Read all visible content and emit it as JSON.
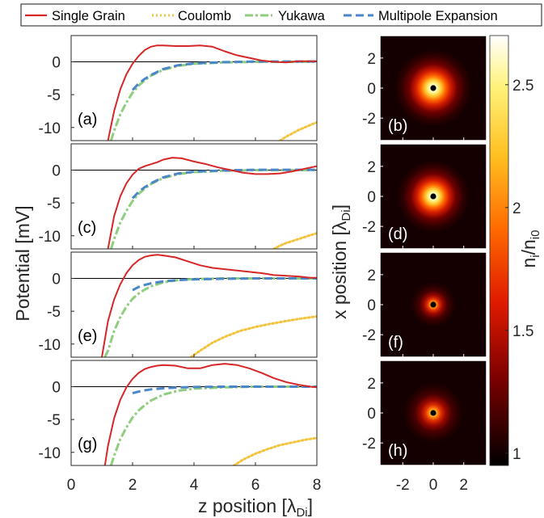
{
  "chart_data": {
    "type": "line",
    "legend": {
      "placement": "top",
      "entries": [
        {
          "name": "Single Grain",
          "color": "#d62728",
          "style": "solid"
        },
        {
          "name": "Coulomb",
          "color": "#f2c33c",
          "style": "dotted"
        },
        {
          "name": "Yukawa",
          "color": "#8fcd7f",
          "style": "dash-dot"
        },
        {
          "name": "Multipole Expansion",
          "color": "#4a86c8",
          "style": "dashed"
        }
      ]
    },
    "xlabel": "z position [λDi]",
    "ylabel": "Potential [mV]",
    "xlim": [
      0,
      8
    ],
    "ylim": [
      -12,
      4
    ],
    "xticks": [
      0,
      2,
      4,
      6,
      8
    ],
    "yticks": [
      0,
      -5,
      -10
    ],
    "zero_line": true,
    "panels": [
      {
        "label": "(a)",
        "series": [
          {
            "name": "Single Grain",
            "x": [
              1.2,
              1.4,
              1.6,
              1.8,
              2.0,
              2.2,
              2.4,
              2.6,
              2.8,
              3.0,
              3.4,
              3.8,
              4.2,
              4.6,
              5.0,
              5.4,
              5.8,
              6.2,
              6.6,
              7.0,
              7.4,
              7.8,
              8.0
            ],
            "y": [
              -12,
              -7.5,
              -4.2,
              -1.9,
              -0.3,
              0.9,
              1.8,
              2.3,
              2.5,
              2.5,
              2.4,
              2.4,
              2.5,
              2.3,
              1.6,
              1.0,
              0.6,
              0.2,
              0.0,
              -0.1,
              0.1,
              0.1,
              0.1
            ]
          },
          {
            "name": "Coulomb",
            "x": [
              6.8,
              7.0,
              7.2,
              7.4,
              7.6,
              7.8,
              8.0
            ],
            "y": [
              -12,
              -11.4,
              -10.9,
              -10.4,
              -10.0,
              -9.6,
              -9.2
            ]
          },
          {
            "name": "Yukawa",
            "x": [
              1.3,
              1.4,
              1.6,
              1.8,
              2.0,
              2.2,
              2.4,
              2.6,
              3.0,
              3.5,
              4.0,
              5.0,
              6.0,
              7.0,
              8.0
            ],
            "y": [
              -12,
              -10.5,
              -8.0,
              -6.2,
              -4.7,
              -3.6,
              -2.8,
              -2.1,
              -1.2,
              -0.6,
              -0.3,
              -0.1,
              0,
              0,
              0
            ]
          },
          {
            "name": "Multipole Expansion",
            "x": [
              2.0,
              2.2,
              2.4,
              2.6,
              3.0,
              3.5,
              4.0,
              5.0,
              6.0,
              7.0,
              8.0
            ],
            "y": [
              -4.3,
              -3.3,
              -2.6,
              -2.0,
              -1.1,
              -0.5,
              -0.25,
              -0.05,
              0.05,
              0.05,
              0.05
            ]
          }
        ]
      },
      {
        "label": "(c)",
        "series": [
          {
            "name": "Single Grain",
            "x": [
              1.2,
              1.4,
              1.6,
              1.8,
              2.0,
              2.2,
              2.4,
              2.6,
              2.8,
              3.0,
              3.3,
              3.6,
              4.0,
              4.4,
              4.8,
              5.2,
              5.6,
              6.0,
              6.4,
              6.8,
              7.2,
              7.6,
              8.0
            ],
            "y": [
              -12,
              -7.0,
              -4.0,
              -2.0,
              -0.7,
              0.2,
              0.6,
              0.9,
              1.2,
              1.6,
              1.9,
              1.8,
              1.3,
              0.9,
              0.4,
              0.0,
              -0.4,
              -0.6,
              -0.6,
              -0.5,
              -0.2,
              0.2,
              0.6
            ]
          },
          {
            "name": "Coulomb",
            "x": [
              6.6,
              6.8,
              7.0,
              7.2,
              7.4,
              7.6,
              7.8,
              8.0
            ],
            "y": [
              -12,
              -11.5,
              -11.1,
              -10.8,
              -10.5,
              -10.2,
              -9.9,
              -9.6
            ]
          },
          {
            "name": "Yukawa",
            "x": [
              1.3,
              1.4,
              1.6,
              1.8,
              2.0,
              2.2,
              2.4,
              2.6,
              3.0,
              3.5,
              4.0,
              5.0,
              6.0,
              7.0,
              8.0
            ],
            "y": [
              -12,
              -10.5,
              -8.0,
              -6.2,
              -4.7,
              -3.6,
              -2.8,
              -2.1,
              -1.2,
              -0.6,
              -0.3,
              -0.1,
              0,
              0,
              0
            ]
          },
          {
            "name": "Multipole Expansion",
            "x": [
              2.0,
              2.2,
              2.4,
              2.6,
              3.0,
              3.5,
              4.0,
              5.0,
              6.0,
              7.0,
              8.0
            ],
            "y": [
              -4.3,
              -3.3,
              -2.6,
              -2.0,
              -1.1,
              -0.5,
              -0.25,
              -0.05,
              0.05,
              0.05,
              0.05
            ]
          }
        ]
      },
      {
        "label": "(e)",
        "series": [
          {
            "name": "Single Grain",
            "x": [
              1.0,
              1.2,
              1.4,
              1.6,
              1.8,
              2.0,
              2.2,
              2.4,
              2.6,
              2.8,
              3.0,
              3.4,
              3.8,
              4.2,
              4.6,
              5.0,
              5.4,
              5.8,
              6.2,
              6.6,
              7.0,
              7.4,
              7.8,
              8.0
            ],
            "y": [
              -12,
              -6.5,
              -3.2,
              -0.9,
              0.8,
              2.0,
              2.8,
              3.3,
              3.5,
              3.6,
              3.5,
              3.2,
              2.6,
              2.0,
              1.6,
              1.4,
              1.2,
              1.0,
              0.8,
              0.5,
              0.4,
              0.3,
              0.1,
              0.1
            ]
          },
          {
            "name": "Coulomb",
            "x": [
              3.9,
              4.2,
              4.6,
              5.0,
              5.5,
              6.0,
              6.5,
              7.0,
              7.5,
              8.0
            ],
            "y": [
              -12,
              -11.0,
              -9.8,
              -8.9,
              -8.0,
              -7.4,
              -6.9,
              -6.5,
              -6.1,
              -5.8
            ]
          },
          {
            "name": "Yukawa",
            "x": [
              1.1,
              1.2,
              1.4,
              1.6,
              1.8,
              2.0,
              2.2,
              2.4,
              2.6,
              3.0,
              3.5,
              4.0,
              5.0,
              6.0,
              7.0,
              8.0
            ],
            "y": [
              -12,
              -11.0,
              -8.0,
              -5.9,
              -4.3,
              -3.1,
              -2.3,
              -1.7,
              -1.2,
              -0.6,
              -0.25,
              -0.1,
              0,
              0,
              0,
              0
            ]
          },
          {
            "name": "Multipole Expansion",
            "x": [
              2.0,
              2.2,
              2.4,
              2.6,
              3.0,
              3.5,
              4.0,
              5.0,
              6.0,
              7.0,
              8.0
            ],
            "y": [
              -1.8,
              -1.3,
              -1.0,
              -0.75,
              -0.45,
              -0.25,
              -0.15,
              -0.05,
              0,
              0,
              0
            ]
          }
        ]
      },
      {
        "label": "(g)",
        "series": [
          {
            "name": "Single Grain",
            "x": [
              1.1,
              1.2,
              1.4,
              1.6,
              1.8,
              2.0,
              2.2,
              2.4,
              2.6,
              2.8,
              3.0,
              3.4,
              3.8,
              4.2,
              4.6,
              5.0,
              5.4,
              5.8,
              6.2,
              6.6,
              7.0,
              7.4,
              7.8,
              8.0
            ],
            "y": [
              -12,
              -9.0,
              -4.8,
              -2.0,
              -0.1,
              1.2,
              2.1,
              2.7,
              3.0,
              3.2,
              3.3,
              3.2,
              2.8,
              2.8,
              3.3,
              3.5,
              3.3,
              2.8,
              2.1,
              1.3,
              0.7,
              0.3,
              0.0,
              -0.1
            ]
          },
          {
            "name": "Coulomb",
            "x": [
              5.3,
              5.6,
              6.0,
              6.4,
              6.8,
              7.2,
              7.6,
              8.0
            ],
            "y": [
              -12,
              -11.1,
              -10.2,
              -9.5,
              -8.9,
              -8.5,
              -8.1,
              -7.8
            ]
          },
          {
            "name": "Yukawa",
            "x": [
              1.3,
              1.4,
              1.6,
              1.8,
              2.0,
              2.2,
              2.4,
              2.6,
              3.0,
              3.5,
              4.0,
              5.0,
              6.0,
              7.0,
              8.0
            ],
            "y": [
              -12,
              -10.5,
              -8.0,
              -6.2,
              -4.7,
              -3.6,
              -2.8,
              -2.1,
              -1.2,
              -0.6,
              -0.3,
              -0.1,
              0,
              0,
              0
            ]
          },
          {
            "name": "Multipole Expansion",
            "x": [
              2.0,
              2.2,
              2.4,
              2.6,
              3.0,
              3.5,
              4.0,
              5.0,
              6.0,
              7.0,
              8.0
            ],
            "y": [
              -1.0,
              -0.75,
              -0.55,
              -0.4,
              -0.25,
              -0.12,
              -0.05,
              0,
              0,
              0,
              0
            ]
          }
        ]
      }
    ],
    "heatmaps": {
      "type": "heatmap",
      "xlabel": "",
      "ylabel": "x position [λDi]",
      "xlim": [
        -3.5,
        3.5
      ],
      "ylim": [
        -3.5,
        3.5
      ],
      "xticks": [
        -2,
        0,
        2
      ],
      "yticks": [
        2,
        0,
        -2
      ],
      "colormap": "hot",
      "colorbar": {
        "label": "ni/ni0",
        "ticks": [
          2.5,
          2,
          1.5,
          1
        ],
        "range": [
          0.95,
          2.7
        ]
      },
      "panels": [
        {
          "label": "(b)",
          "peak": 2.7,
          "core_radius": 0.75
        },
        {
          "label": "(d)",
          "peak": 2.7,
          "core_radius": 0.7
        },
        {
          "label": "(f)",
          "peak": 2.5,
          "core_radius": 0.45
        },
        {
          "label": "(h)",
          "peak": 2.6,
          "core_radius": 0.6
        }
      ]
    }
  }
}
